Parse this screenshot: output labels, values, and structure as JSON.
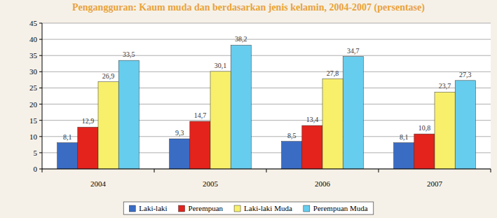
{
  "chart_data": {
    "type": "bar",
    "title": "Pengangguran: Kaum muda dan berdasarkan jenis kelamin, 2004-2007 (persentase)",
    "categories": [
      "2004",
      "2005",
      "2006",
      "2007"
    ],
    "series": [
      {
        "name": "Laki-laki",
        "color": "#3a6cc4",
        "values": [
          8.1,
          9.3,
          8.5,
          8.1
        ],
        "value_labels": [
          "8,1",
          "9,3",
          "8,5",
          "8,1"
        ]
      },
      {
        "name": "Perempuan",
        "color": "#e3231c",
        "values": [
          12.9,
          14.7,
          13.4,
          10.8
        ],
        "value_labels": [
          "12,9",
          "14,7",
          "13,4",
          "10,8"
        ]
      },
      {
        "name": "Laki-laki Muda",
        "color": "#f8f06a",
        "values": [
          26.9,
          30.1,
          27.8,
          23.7
        ],
        "value_labels": [
          "26,9",
          "30,1",
          "27,8",
          "23,7"
        ]
      },
      {
        "name": "Perempuan Muda",
        "color": "#67cdee",
        "values": [
          33.5,
          38.2,
          34.7,
          27.3
        ],
        "value_labels": [
          "33,5",
          "38,2",
          "34,7",
          "27,3"
        ]
      }
    ],
    "ylim": [
      0,
      45
    ],
    "yticks": [
      0,
      5,
      10,
      15,
      20,
      25,
      30,
      35,
      40,
      45
    ],
    "grid": true,
    "legend": "bottom",
    "data_labels": true
  }
}
